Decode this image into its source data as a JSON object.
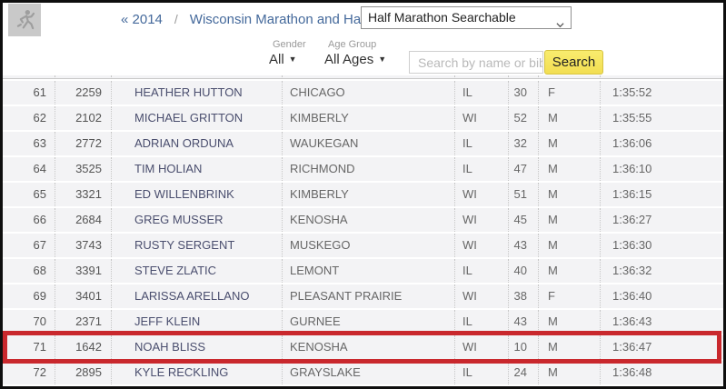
{
  "header": {
    "breadcrumb": {
      "back_link": "« 2014",
      "separator": "/",
      "event_link": "Wisconsin Marathon and Half Marathon"
    },
    "race_select": {
      "value": "Half Marathon Searchable"
    }
  },
  "filters": {
    "gender": {
      "label": "Gender",
      "value": "All",
      "caret": "▼"
    },
    "age_group": {
      "label": "Age Group",
      "value": "All Ages",
      "caret": "▼"
    },
    "search": {
      "placeholder": "Search by name or bib",
      "value": "",
      "button_label": "Search"
    }
  },
  "icons": {
    "runner": "runner-icon",
    "chevron_down": "chevron-down-icon",
    "caret_down": "caret-down-icon"
  },
  "colors": {
    "link": "#44699b",
    "highlight_border": "#c9282d",
    "search_button": "#f6e65f",
    "row_background": "#f3f3f5"
  },
  "table": {
    "columns": [
      "place",
      "bib",
      "name",
      "city",
      "state",
      "age",
      "gender",
      "time"
    ],
    "highlighted_place": "71",
    "rows": [
      {
        "place": "61",
        "bib": "2259",
        "name": "HEATHER HUTTON",
        "city": "CHICAGO",
        "state": "IL",
        "age": "30",
        "gender": "F",
        "time": "1:35:52",
        "highlighted": false
      },
      {
        "place": "62",
        "bib": "2102",
        "name": "MICHAEL GRITTON",
        "city": "KIMBERLY",
        "state": "WI",
        "age": "52",
        "gender": "M",
        "time": "1:35:55",
        "highlighted": false
      },
      {
        "place": "63",
        "bib": "2772",
        "name": "ADRIAN ORDUNA",
        "city": "WAUKEGAN",
        "state": "IL",
        "age": "32",
        "gender": "M",
        "time": "1:36:06",
        "highlighted": false
      },
      {
        "place": "64",
        "bib": "3525",
        "name": "TIM HOLIAN",
        "city": "RICHMOND",
        "state": "IL",
        "age": "47",
        "gender": "M",
        "time": "1:36:10",
        "highlighted": false
      },
      {
        "place": "65",
        "bib": "3321",
        "name": "ED WILLENBRINK",
        "city": "KIMBERLY",
        "state": "WI",
        "age": "51",
        "gender": "M",
        "time": "1:36:15",
        "highlighted": false
      },
      {
        "place": "66",
        "bib": "2684",
        "name": "GREG MUSSER",
        "city": "KENOSHA",
        "state": "WI",
        "age": "45",
        "gender": "M",
        "time": "1:36:27",
        "highlighted": false
      },
      {
        "place": "67",
        "bib": "3743",
        "name": "RUSTY SERGENT",
        "city": "MUSKEGO",
        "state": "WI",
        "age": "43",
        "gender": "M",
        "time": "1:36:30",
        "highlighted": false
      },
      {
        "place": "68",
        "bib": "3391",
        "name": "STEVE ZLATIC",
        "city": "LEMONT",
        "state": "IL",
        "age": "40",
        "gender": "M",
        "time": "1:36:32",
        "highlighted": false
      },
      {
        "place": "69",
        "bib": "3401",
        "name": "LARISSA ARELLANO",
        "city": "PLEASANT PRAIRIE",
        "state": "WI",
        "age": "38",
        "gender": "F",
        "time": "1:36:40",
        "highlighted": false
      },
      {
        "place": "70",
        "bib": "2371",
        "name": "JEFF KLEIN",
        "city": "GURNEE",
        "state": "IL",
        "age": "43",
        "gender": "M",
        "time": "1:36:43",
        "highlighted": false
      },
      {
        "place": "71",
        "bib": "1642",
        "name": "NOAH BLISS",
        "city": "KENOSHA",
        "state": "WI",
        "age": "10",
        "gender": "M",
        "time": "1:36:47",
        "highlighted": true
      },
      {
        "place": "72",
        "bib": "2895",
        "name": "KYLE RECKLING",
        "city": "GRAYSLAKE",
        "state": "IL",
        "age": "24",
        "gender": "M",
        "time": "1:36:48",
        "highlighted": false
      }
    ]
  }
}
